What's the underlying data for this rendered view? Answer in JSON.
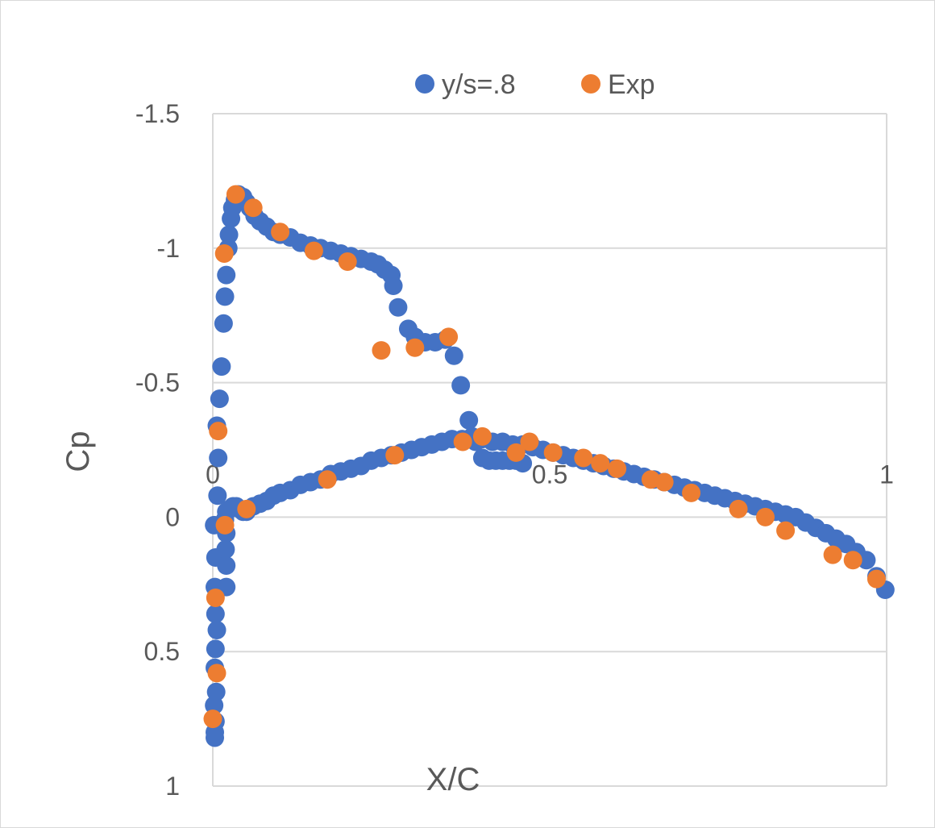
{
  "chart_data": {
    "type": "scatter",
    "xlabel": "X/C",
    "ylabel": "Cp",
    "xlim": [
      0,
      1
    ],
    "ylim": [
      -1.5,
      1
    ],
    "y_reversed": true,
    "grid": "horizontal",
    "legend_position": "top",
    "x_ticks": [
      {
        "value": 0,
        "label": "0"
      },
      {
        "value": 0.5,
        "label": "0.5"
      },
      {
        "value": 1,
        "label": "1"
      }
    ],
    "y_ticks": [
      {
        "value": -1.5,
        "label": "-1.5"
      },
      {
        "value": -1,
        "label": "-1"
      },
      {
        "value": -0.5,
        "label": "-0.5"
      },
      {
        "value": 0,
        "label": "0"
      },
      {
        "value": 0.5,
        "label": "0.5"
      },
      {
        "value": 1,
        "label": "1"
      }
    ],
    "series": [
      {
        "name": "y/s=.8",
        "color": "#4472c4",
        "points": [
          [
            0.003,
            0.82
          ],
          [
            0.003,
            0.8
          ],
          [
            0.004,
            0.76
          ],
          [
            0.002,
            0.7
          ],
          [
            0.005,
            0.65
          ],
          [
            0.003,
            0.56
          ],
          [
            0.004,
            0.49
          ],
          [
            0.006,
            0.42
          ],
          [
            0.004,
            0.36
          ],
          [
            0.003,
            0.26
          ],
          [
            0.004,
            0.15
          ],
          [
            0.002,
            0.03
          ],
          [
            0.007,
            -0.08
          ],
          [
            0.008,
            -0.22
          ],
          [
            0.006,
            -0.34
          ],
          [
            0.01,
            -0.44
          ],
          [
            0.013,
            -0.56
          ],
          [
            0.016,
            -0.72
          ],
          [
            0.018,
            -0.82
          ],
          [
            0.02,
            -0.9
          ],
          [
            0.023,
            -1.0
          ],
          [
            0.024,
            -1.05
          ],
          [
            0.027,
            -1.11
          ],
          [
            0.029,
            -1.15
          ],
          [
            0.033,
            -1.18
          ],
          [
            0.038,
            -1.2
          ],
          [
            0.045,
            -1.19
          ],
          [
            0.05,
            -1.17
          ],
          [
            0.055,
            -1.15
          ],
          [
            0.062,
            -1.12
          ],
          [
            0.07,
            -1.1
          ],
          [
            0.08,
            -1.08
          ],
          [
            0.09,
            -1.06
          ],
          [
            0.1,
            -1.05
          ],
          [
            0.115,
            -1.04
          ],
          [
            0.13,
            -1.02
          ],
          [
            0.145,
            -1.01
          ],
          [
            0.16,
            -1.0
          ],
          [
            0.175,
            -0.99
          ],
          [
            0.19,
            -0.98
          ],
          [
            0.205,
            -0.97
          ],
          [
            0.22,
            -0.96
          ],
          [
            0.235,
            -0.95
          ],
          [
            0.245,
            -0.94
          ],
          [
            0.255,
            -0.92
          ],
          [
            0.265,
            -0.9
          ],
          [
            0.268,
            -0.86
          ],
          [
            0.275,
            -0.78
          ],
          [
            0.29,
            -0.7
          ],
          [
            0.3,
            -0.67
          ],
          [
            0.315,
            -0.65
          ],
          [
            0.33,
            -0.65
          ],
          [
            0.345,
            -0.66
          ],
          [
            0.358,
            -0.6
          ],
          [
            0.368,
            -0.49
          ],
          [
            0.38,
            -0.36
          ],
          [
            0.39,
            -0.28
          ],
          [
            0.4,
            -0.22
          ],
          [
            0.41,
            -0.21
          ],
          [
            0.42,
            -0.21
          ],
          [
            0.43,
            -0.21
          ],
          [
            0.44,
            -0.21
          ],
          [
            0.45,
            -0.21
          ],
          [
            0.46,
            -0.2
          ],
          [
            0.02,
            0.26
          ],
          [
            0.02,
            0.18
          ],
          [
            0.019,
            0.12
          ],
          [
            0.02,
            0.06
          ],
          [
            0.018,
            0.01
          ],
          [
            0.02,
            -0.02
          ],
          [
            0.025,
            -0.03
          ],
          [
            0.03,
            -0.04
          ],
          [
            0.035,
            -0.04
          ],
          [
            0.04,
            -0.03
          ],
          [
            0.045,
            -0.02
          ],
          [
            0.05,
            -0.02
          ],
          [
            0.06,
            -0.04
          ],
          [
            0.07,
            -0.05
          ],
          [
            0.08,
            -0.06
          ],
          [
            0.09,
            -0.08
          ],
          [
            0.1,
            -0.09
          ],
          [
            0.115,
            -0.1
          ],
          [
            0.13,
            -0.12
          ],
          [
            0.145,
            -0.13
          ],
          [
            0.16,
            -0.14
          ],
          [
            0.175,
            -0.16
          ],
          [
            0.19,
            -0.17
          ],
          [
            0.205,
            -0.18
          ],
          [
            0.22,
            -0.19
          ],
          [
            0.235,
            -0.21
          ],
          [
            0.25,
            -0.22
          ],
          [
            0.265,
            -0.23
          ],
          [
            0.28,
            -0.24
          ],
          [
            0.295,
            -0.25
          ],
          [
            0.31,
            -0.26
          ],
          [
            0.325,
            -0.27
          ],
          [
            0.34,
            -0.28
          ],
          [
            0.355,
            -0.29
          ],
          [
            0.37,
            -0.29
          ],
          [
            0.385,
            -0.3
          ],
          [
            0.4,
            -0.29
          ],
          [
            0.415,
            -0.28
          ],
          [
            0.43,
            -0.28
          ],
          [
            0.445,
            -0.27
          ],
          [
            0.46,
            -0.27
          ],
          [
            0.475,
            -0.26
          ],
          [
            0.49,
            -0.25
          ],
          [
            0.505,
            -0.24
          ],
          [
            0.52,
            -0.23
          ],
          [
            0.535,
            -0.22
          ],
          [
            0.55,
            -0.21
          ],
          [
            0.565,
            -0.2
          ],
          [
            0.58,
            -0.19
          ],
          [
            0.595,
            -0.18
          ],
          [
            0.61,
            -0.17
          ],
          [
            0.625,
            -0.16
          ],
          [
            0.64,
            -0.15
          ],
          [
            0.655,
            -0.14
          ],
          [
            0.67,
            -0.13
          ],
          [
            0.685,
            -0.12
          ],
          [
            0.7,
            -0.11
          ],
          [
            0.715,
            -0.1
          ],
          [
            0.73,
            -0.09
          ],
          [
            0.745,
            -0.08
          ],
          [
            0.76,
            -0.07
          ],
          [
            0.775,
            -0.06
          ],
          [
            0.79,
            -0.05
          ],
          [
            0.805,
            -0.04
          ],
          [
            0.82,
            -0.03
          ],
          [
            0.835,
            -0.02
          ],
          [
            0.85,
            -0.01
          ],
          [
            0.865,
            0.0
          ],
          [
            0.88,
            0.02
          ],
          [
            0.895,
            0.04
          ],
          [
            0.91,
            0.06
          ],
          [
            0.925,
            0.08
          ],
          [
            0.94,
            0.1
          ],
          [
            0.955,
            0.13
          ],
          [
            0.97,
            0.16
          ],
          [
            0.985,
            0.22
          ],
          [
            0.998,
            0.27
          ]
        ]
      },
      {
        "name": "Exp",
        "color": "#ed7d31",
        "points": [
          [
            0.034,
            -1.2
          ],
          [
            0.06,
            -1.15
          ],
          [
            0.1,
            -1.06
          ],
          [
            0.15,
            -0.99
          ],
          [
            0.2,
            -0.95
          ],
          [
            0.25,
            -0.62
          ],
          [
            0.3,
            -0.63
          ],
          [
            0.35,
            -0.67
          ],
          [
            0.371,
            -0.28
          ],
          [
            0.4,
            -0.3
          ],
          [
            0.45,
            -0.24
          ],
          [
            0.47,
            -0.28
          ],
          [
            0.505,
            -0.24
          ],
          [
            0.55,
            -0.22
          ],
          [
            0.575,
            -0.2
          ],
          [
            0.6,
            -0.18
          ],
          [
            0.65,
            -0.14
          ],
          [
            0.67,
            -0.13
          ],
          [
            0.71,
            -0.09
          ],
          [
            0.78,
            -0.03
          ],
          [
            0.82,
            0.0
          ],
          [
            0.85,
            0.05
          ],
          [
            0.92,
            0.14
          ],
          [
            0.95,
            0.16
          ],
          [
            0.985,
            0.23
          ],
          [
            0.008,
            -0.32
          ],
          [
            0.017,
            -0.98
          ],
          [
            0.018,
            0.03
          ],
          [
            0.05,
            -0.03
          ],
          [
            0.17,
            -0.14
          ],
          [
            0.27,
            -0.23
          ],
          [
            0.004,
            0.3
          ],
          [
            0.006,
            0.58
          ],
          [
            0.0,
            0.75
          ]
        ]
      }
    ]
  }
}
